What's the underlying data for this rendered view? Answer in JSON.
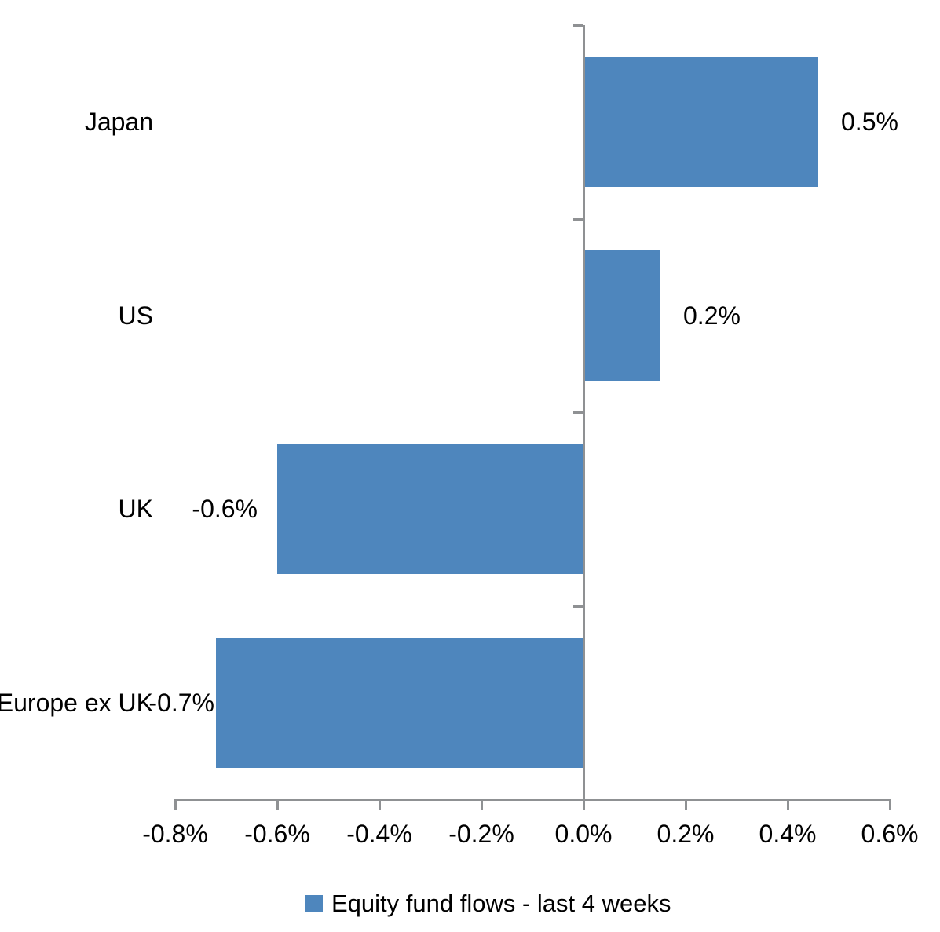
{
  "chart_data": {
    "type": "bar",
    "orientation": "horizontal",
    "title": "",
    "xlabel": "",
    "ylabel": "",
    "categories": [
      "Japan",
      "US",
      "UK",
      "Europe ex UK"
    ],
    "series": [
      {
        "name": "Equity fund flows - last 4 weeks",
        "values": [
          0.46,
          0.15,
          -0.6,
          -0.72
        ],
        "data_labels": [
          "0.5%",
          "0.2%",
          "-0.6%",
          "-0.7%"
        ]
      }
    ],
    "xlim": [
      -0.8,
      0.6
    ],
    "x_tick_interval": 0.2,
    "x_tick_labels": [
      "-0.8%",
      "-0.6%",
      "-0.4%",
      "-0.2%",
      "0.0%",
      "0.2%",
      "0.4%",
      "0.6%"
    ],
    "grid": false,
    "legend_position": "bottom",
    "bar_color": "#4E86BD",
    "axis_color": "#8F9193",
    "text_color": "#000000"
  },
  "legend": {
    "label": "Equity fund flows - last 4 weeks",
    "swatch_color": "#4E86BD"
  }
}
